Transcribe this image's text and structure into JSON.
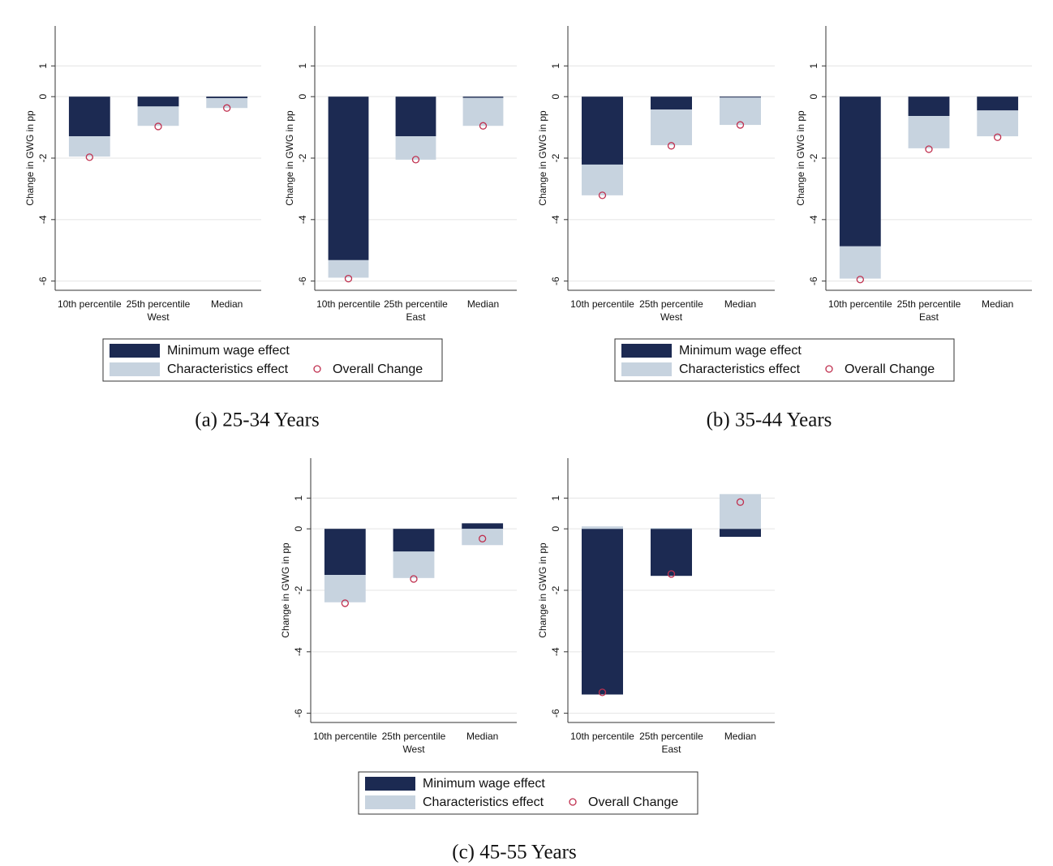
{
  "chart_data": [
    {
      "type": "bar",
      "stacked": true,
      "ylabel": "Change in GWG in pp",
      "xlabel": "West",
      "categories": [
        "10th percentile",
        "25th percentile",
        "Median"
      ],
      "series": [
        {
          "name": "Minimum wage effect",
          "type": "bar",
          "color": "#1c2a52",
          "values": [
            -1.29,
            -0.32,
            -0.05
          ]
        },
        {
          "name": "Characteristics effect",
          "type": "bar",
          "color": "#c7d3df",
          "values": [
            -0.66,
            -0.63,
            -0.32
          ]
        },
        {
          "name": "Overall Change",
          "type": "scatter",
          "color": "#c0304f",
          "values": [
            -1.97,
            -0.97,
            -0.37
          ]
        }
      ],
      "ylim": [
        -6.3,
        2.3
      ],
      "yticks": [
        -6,
        -4,
        -2,
        0,
        1
      ],
      "grid": true
    },
    {
      "type": "bar",
      "stacked": true,
      "ylabel": "Change in GWG in pp",
      "xlabel": "East",
      "categories": [
        "10th percentile",
        "25th percentile",
        "Median"
      ],
      "series": [
        {
          "name": "Minimum wage effect",
          "type": "bar",
          "color": "#1c2a52",
          "values": [
            -5.32,
            -1.29,
            -0.04
          ]
        },
        {
          "name": "Characteristics effect",
          "type": "bar",
          "color": "#c7d3df",
          "values": [
            -0.57,
            -0.76,
            -0.91
          ]
        },
        {
          "name": "Overall Change",
          "type": "scatter",
          "color": "#c0304f",
          "values": [
            -5.92,
            -2.05,
            -0.95
          ]
        }
      ],
      "ylim": [
        -6.3,
        2.3
      ],
      "yticks": [
        -6,
        -4,
        -2,
        0,
        1
      ],
      "grid": true
    },
    {
      "type": "bar",
      "stacked": true,
      "ylabel": "Change in GWG in pp",
      "xlabel": "West",
      "categories": [
        "10th percentile",
        "25th percentile",
        "Median"
      ],
      "series": [
        {
          "name": "Minimum wage effect",
          "type": "bar",
          "color": "#1c2a52",
          "values": [
            -2.21,
            -0.42,
            -0.03
          ]
        },
        {
          "name": "Characteristics effect",
          "type": "bar",
          "color": "#c7d3df",
          "values": [
            -1.0,
            -1.16,
            -0.89
          ]
        },
        {
          "name": "Overall Change",
          "type": "scatter",
          "color": "#c0304f",
          "values": [
            -3.21,
            -1.6,
            -0.92
          ]
        }
      ],
      "ylim": [
        -6.3,
        2.3
      ],
      "yticks": [
        -6,
        -4,
        -2,
        0,
        1
      ],
      "grid": true
    },
    {
      "type": "bar",
      "stacked": true,
      "ylabel": "Change in GWG in pp",
      "xlabel": "East",
      "categories": [
        "10th percentile",
        "25th percentile",
        "Median"
      ],
      "series": [
        {
          "name": "Minimum wage effect",
          "type": "bar",
          "color": "#1c2a52",
          "values": [
            -4.87,
            -0.63,
            -0.45
          ]
        },
        {
          "name": "Characteristics effect",
          "type": "bar",
          "color": "#c7d3df",
          "values": [
            -1.05,
            -1.05,
            -0.84
          ]
        },
        {
          "name": "Overall Change",
          "type": "scatter",
          "color": "#c0304f",
          "values": [
            -5.95,
            -1.71,
            -1.32
          ]
        }
      ],
      "ylim": [
        -6.3,
        2.3
      ],
      "yticks": [
        -6,
        -4,
        -2,
        0,
        1
      ],
      "grid": true
    },
    {
      "type": "bar",
      "stacked": true,
      "ylabel": "Change in GWG in pp",
      "xlabel": "West",
      "categories": [
        "10th percentile",
        "25th percentile",
        "Median"
      ],
      "series": [
        {
          "name": "Minimum wage effect",
          "type": "bar",
          "color": "#1c2a52",
          "values": [
            -1.5,
            -0.74,
            0.18
          ]
        },
        {
          "name": "Characteristics effect",
          "type": "bar",
          "color": "#c7d3df",
          "values": [
            -0.89,
            -0.86,
            -0.53
          ]
        },
        {
          "name": "Overall Change",
          "type": "scatter",
          "color": "#c0304f",
          "values": [
            -2.42,
            -1.63,
            -0.32
          ]
        }
      ],
      "ylim": [
        -6.3,
        2.3
      ],
      "yticks": [
        -6,
        -4,
        -2,
        0,
        1
      ],
      "grid": true
    },
    {
      "type": "bar",
      "stacked": true,
      "ylabel": "Change in GWG in pp",
      "xlabel": "East",
      "categories": [
        "10th percentile",
        "25th percentile",
        "Median"
      ],
      "series": [
        {
          "name": "Minimum wage effect",
          "type": "bar",
          "color": "#1c2a52",
          "values": [
            -5.39,
            -1.53,
            -0.26
          ]
        },
        {
          "name": "Characteristics effect",
          "type": "bar",
          "color": "#c7d3df",
          "values": [
            0.08,
            0.03,
            1.13
          ]
        },
        {
          "name": "Overall Change",
          "type": "scatter",
          "color": "#c0304f",
          "values": [
            -5.32,
            -1.47,
            0.87
          ]
        }
      ],
      "ylim": [
        -6.3,
        2.3
      ],
      "yticks": [
        -6,
        -4,
        -2,
        0,
        1
      ],
      "grid": true
    }
  ],
  "captions": [
    "(a) 25-34 Years",
    "(b) 35-44 Years",
    "(c) 45-55 Years"
  ]
}
